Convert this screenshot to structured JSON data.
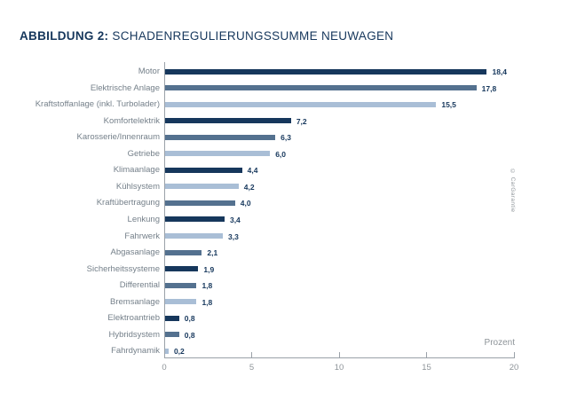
{
  "title": {
    "prefix": "ABBILDUNG 2:",
    "text": "SCHADENREGULIERUNGSSUMME NEUWAGEN"
  },
  "axis": {
    "unit_label": "Prozent"
  },
  "copyright": "© CarGarantie",
  "colors": {
    "dark": "#16375c",
    "medium": "#54718f",
    "light": "#a9bed6",
    "title_navy": "#16375c",
    "label_gray": "#75808a",
    "tick_gray": "#8e9499",
    "axis_gray": "#9aa1a8"
  },
  "chart_data": {
    "type": "bar",
    "orientation": "horizontal",
    "title": "ABBILDUNG 2: SCHADENREGULIERUNGSSUMME NEUWAGEN",
    "xlabel": "Prozent",
    "xlim": [
      0,
      20
    ],
    "x_ticks": [
      0,
      5,
      10,
      15,
      20
    ],
    "grid": false,
    "legend": false,
    "categories": [
      "Motor",
      "Elektrische Anlage",
      "Kraftstoffanlage (inkl. Turbolader)",
      "Komfortelektrik",
      "Karosserie/Innenraum",
      "Getriebe",
      "Klimaanlage",
      "Kühlsystem",
      "Kraftübertragung",
      "Lenkung",
      "Fahrwerk",
      "Abgasanlage",
      "Sicherheitssysteme",
      "Differential",
      "Bremsanlage",
      "Elektroantrieb",
      "Hybridsystem",
      "Fahrdynamik"
    ],
    "values": [
      18.4,
      17.8,
      15.5,
      7.2,
      6.3,
      6.0,
      4.4,
      4.2,
      4.0,
      3.4,
      3.3,
      2.1,
      1.9,
      1.8,
      1.8,
      0.8,
      0.8,
      0.2
    ],
    "value_labels": [
      "18,4",
      "17,8",
      "15,5",
      "7,2",
      "6,3",
      "6,0",
      "4,4",
      "4,2",
      "4,0",
      "3,4",
      "3,3",
      "2,1",
      "1,9",
      "1,8",
      "1,8",
      "0,8",
      "0,8",
      "0,2"
    ],
    "bar_colors": [
      "dark",
      "medium",
      "light",
      "dark",
      "medium",
      "light",
      "dark",
      "light",
      "medium",
      "dark",
      "light",
      "medium",
      "dark",
      "medium",
      "light",
      "dark",
      "medium",
      "light"
    ]
  }
}
